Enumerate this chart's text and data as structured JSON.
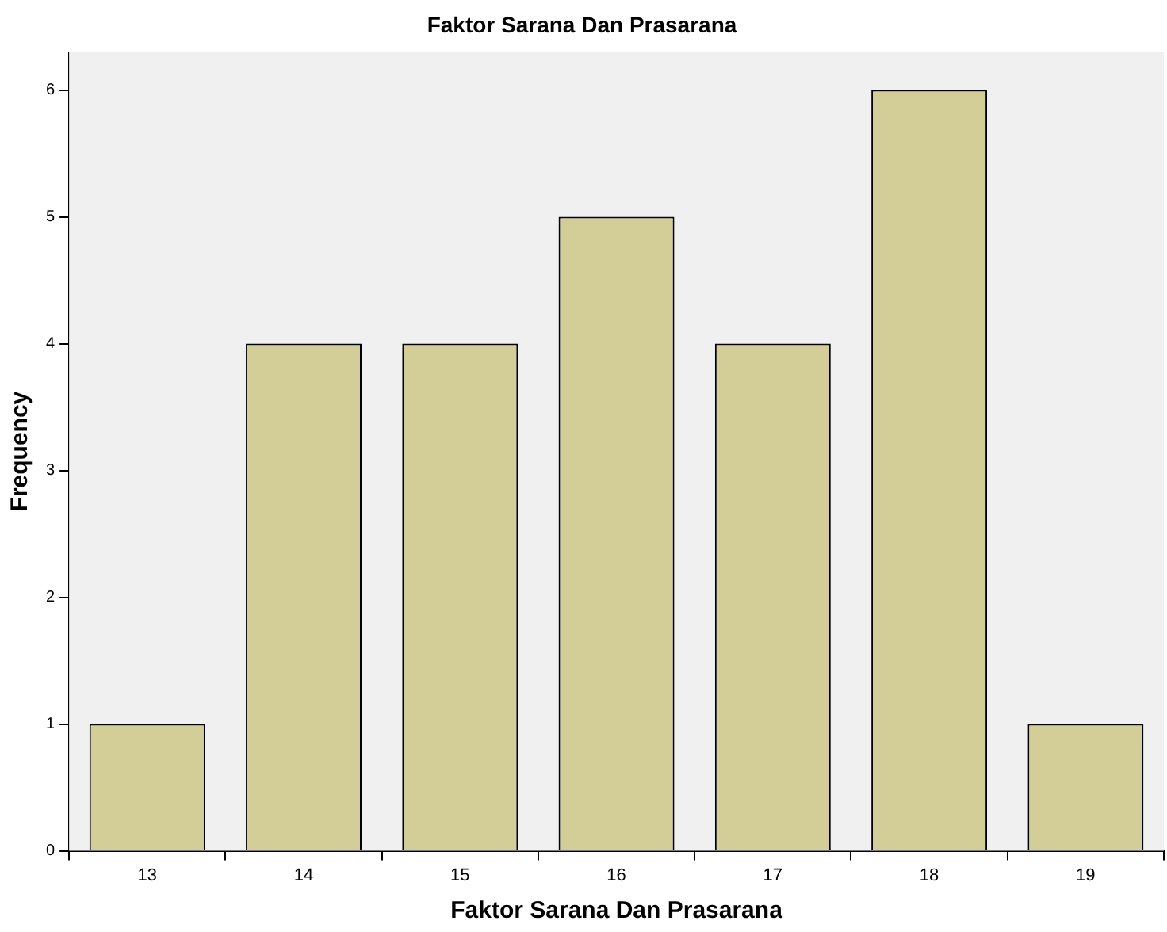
{
  "chart_data": {
    "type": "bar",
    "title": "Faktor Sarana Dan Prasarana",
    "xlabel": "Faktor Sarana Dan Prasarana",
    "ylabel": "Frequency",
    "categories": [
      "13",
      "14",
      "15",
      "16",
      "17",
      "18",
      "19"
    ],
    "values": [
      1,
      4,
      4,
      5,
      4,
      6,
      1
    ],
    "color": "#d3ce97",
    "ylim": [
      0,
      6.3
    ],
    "yticks": [
      0,
      1,
      2,
      3,
      4,
      5,
      6
    ],
    "grid": false,
    "legend": false
  }
}
